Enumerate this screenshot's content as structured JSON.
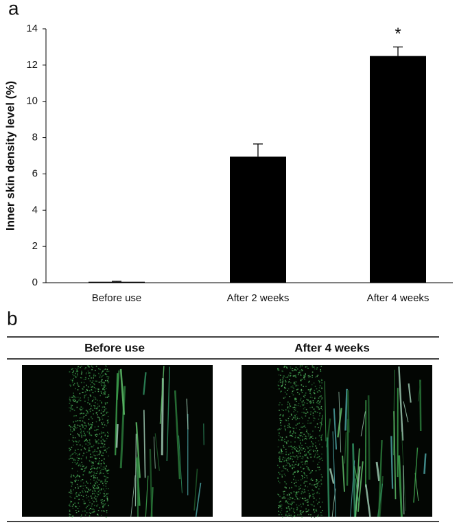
{
  "panel_labels": [
    "a",
    "b"
  ],
  "chart_data": {
    "type": "bar",
    "y_label": "Inner skin density level (%)",
    "categories": [
      "Before use",
      "After 2 weeks",
      "After 4 weeks"
    ],
    "values": [
      0.05,
      6.95,
      12.5
    ],
    "errors": [
      0.03,
      0.7,
      0.5
    ],
    "color": "#000000",
    "ylim": [
      0,
      14
    ],
    "yticks": [
      0,
      2,
      4,
      6,
      8,
      10,
      12,
      14
    ],
    "annotations": [
      {
        "text": "*",
        "index": 2
      }
    ]
  },
  "images": {
    "headers": [
      "Before use",
      "After 4 weeks"
    ]
  }
}
